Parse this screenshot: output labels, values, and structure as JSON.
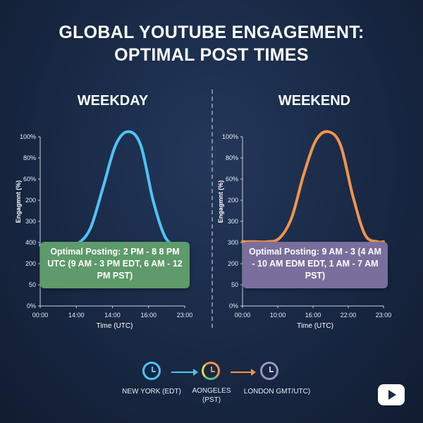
{
  "title_line1": "GLOBAL YOUTUBE ENGAGEMENT:",
  "title_line2": "OPTIMAL POST TIMES",
  "chart_data": [
    {
      "type": "line",
      "title": "WEEKDAY",
      "xlabel": "Time (UTC)",
      "ylabel": "Engagmnt (%)",
      "y_tick_labels": [
        "0%",
        "50",
        "200",
        "400",
        "300",
        "200",
        "60%",
        "80%",
        "100%"
      ],
      "x_tick_labels": [
        "00:00",
        "14:00",
        "14:00",
        "16:00",
        "23:00"
      ],
      "x": [
        0,
        2,
        4,
        6,
        8,
        10,
        12,
        14,
        16,
        18,
        20,
        22,
        23
      ],
      "series": [
        {
          "values": [
            36,
            36,
            36,
            37,
            46,
            70,
            95,
            103,
            95,
            62,
            40,
            36,
            36
          ]
        }
      ],
      "ylim": [
        0,
        100
      ],
      "xlim": [
        0,
        23
      ],
      "grid": false,
      "annotation": "Optimal Posting: 2 PM - 8 8 PM UTC (9 AM - 3 PM EDT, 6 AM - 12 PM PST)",
      "color": "#4fc3f7",
      "annotation_color": "#5e9a6a"
    },
    {
      "type": "line",
      "title": "WEEKEND",
      "xlabel": "Time (UTC)",
      "ylabel": "Engagmnt (%)",
      "y_tick_labels": [
        "0%",
        "50",
        "200",
        "300",
        "300",
        "200",
        "60%",
        "80%",
        "100%"
      ],
      "x_tick_labels": [
        "00:00",
        "10:00",
        "16:00",
        "22:00",
        "23:00"
      ],
      "x": [
        0,
        2,
        4,
        6,
        8,
        10,
        12,
        14,
        16,
        18,
        20,
        22,
        23
      ],
      "series": [
        {
          "values": [
            38,
            38,
            38,
            40,
            52,
            78,
            98,
            103,
            95,
            65,
            42,
            38,
            38
          ]
        }
      ],
      "ylim": [
        0,
        100
      ],
      "xlim": [
        0,
        23
      ],
      "grid": false,
      "annotation": "Optimal Posting: 9 AM - 3 (4 AM - 10 AM EDM EDT, 1 AM - 7 AM PST)",
      "color": "#f4934b",
      "annotation_color": "#7a6f9c"
    }
  ],
  "clocks": [
    {
      "label": "NEW YORK (EDT)",
      "color": "#4fc3f7"
    },
    {
      "label": "AONGELES (PST)",
      "color": "#f4934b"
    },
    {
      "label": "LONDON GMT/UTC)",
      "color": "#9a93c4"
    }
  ],
  "youtube_icon": "play-button-icon"
}
